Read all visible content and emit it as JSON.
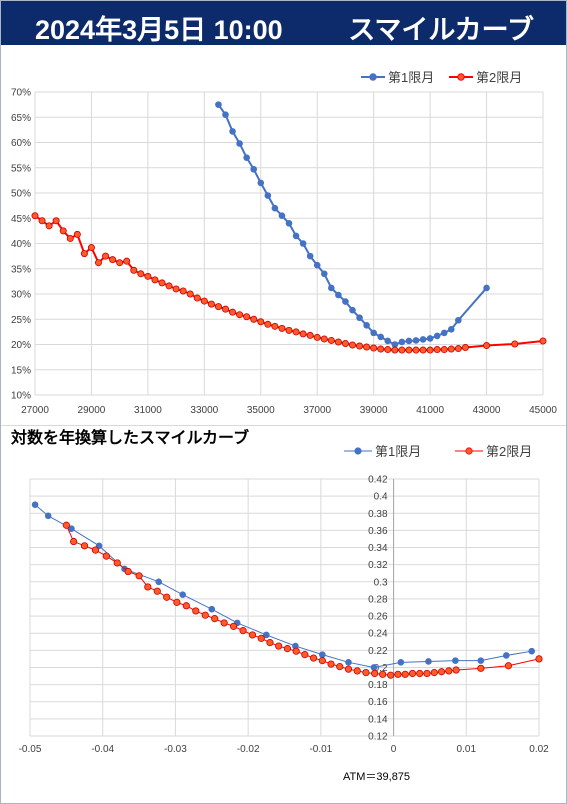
{
  "header": {
    "date": "2024年3月5日 10:00",
    "title": "スマイルカーブ"
  },
  "chart_data": [
    {
      "type": "line",
      "title": "",
      "xlabel": "",
      "ylabel": "",
      "xlim": [
        27000,
        45000
      ],
      "ylim": [
        0.1,
        0.7
      ],
      "x_ticks": [
        "27000",
        "29000",
        "31000",
        "33000",
        "35000",
        "37000",
        "39000",
        "41000",
        "43000",
        "45000"
      ],
      "y_ticks": [
        "10%",
        "15%",
        "20%",
        "25%",
        "30%",
        "35%",
        "40%",
        "45%",
        "50%",
        "55%",
        "60%",
        "65%",
        "70%"
      ],
      "legend_position": "top-right",
      "grid": true,
      "series": [
        {
          "name": "第1限月",
          "color": "#4472c4",
          "points": [
            [
              33500,
              0.675
            ],
            [
              33750,
              0.655
            ],
            [
              34000,
              0.622
            ],
            [
              34250,
              0.598
            ],
            [
              34500,
              0.57
            ],
            [
              34750,
              0.547
            ],
            [
              35000,
              0.52
            ],
            [
              35250,
              0.495
            ],
            [
              35500,
              0.47
            ],
            [
              35750,
              0.455
            ],
            [
              36000,
              0.44
            ],
            [
              36250,
              0.415
            ],
            [
              36500,
              0.4
            ],
            [
              36750,
              0.375
            ],
            [
              37000,
              0.357
            ],
            [
              37250,
              0.34
            ],
            [
              37500,
              0.312
            ],
            [
              37750,
              0.298
            ],
            [
              38000,
              0.285
            ],
            [
              38250,
              0.268
            ],
            [
              38500,
              0.253
            ],
            [
              38750,
              0.238
            ],
            [
              39000,
              0.223
            ],
            [
              39250,
              0.215
            ],
            [
              39500,
              0.207
            ],
            [
              39750,
              0.2
            ],
            [
              40000,
              0.205
            ],
            [
              40250,
              0.207
            ],
            [
              40500,
              0.208
            ],
            [
              40750,
              0.21
            ],
            [
              41000,
              0.212
            ],
            [
              41250,
              0.217
            ],
            [
              41500,
              0.223
            ],
            [
              41750,
              0.23
            ],
            [
              42000,
              0.248
            ],
            [
              43000,
              0.312
            ]
          ]
        },
        {
          "name": "第2限月",
          "color": "#ff0000",
          "points": [
            [
              27000,
              0.455
            ],
            [
              27250,
              0.445
            ],
            [
              27500,
              0.435
            ],
            [
              27750,
              0.445
            ],
            [
              28000,
              0.425
            ],
            [
              28250,
              0.41
            ],
            [
              28500,
              0.418
            ],
            [
              28750,
              0.38
            ],
            [
              29000,
              0.392
            ],
            [
              29250,
              0.362
            ],
            [
              29500,
              0.375
            ],
            [
              29750,
              0.368
            ],
            [
              30000,
              0.362
            ],
            [
              30250,
              0.365
            ],
            [
              30500,
              0.347
            ],
            [
              30750,
              0.34
            ],
            [
              31000,
              0.335
            ],
            [
              31250,
              0.328
            ],
            [
              31500,
              0.322
            ],
            [
              31750,
              0.316
            ],
            [
              32000,
              0.31
            ],
            [
              32250,
              0.306
            ],
            [
              32500,
              0.3
            ],
            [
              32750,
              0.292
            ],
            [
              33000,
              0.286
            ],
            [
              33250,
              0.28
            ],
            [
              33500,
              0.275
            ],
            [
              33750,
              0.27
            ],
            [
              34000,
              0.264
            ],
            [
              34250,
              0.259
            ],
            [
              34500,
              0.255
            ],
            [
              34750,
              0.25
            ],
            [
              35000,
              0.245
            ],
            [
              35250,
              0.24
            ],
            [
              35500,
              0.236
            ],
            [
              35750,
              0.232
            ],
            [
              36000,
              0.228
            ],
            [
              36250,
              0.225
            ],
            [
              36500,
              0.221
            ],
            [
              36750,
              0.218
            ],
            [
              37000,
              0.214
            ],
            [
              37250,
              0.211
            ],
            [
              37500,
              0.208
            ],
            [
              37750,
              0.205
            ],
            [
              38000,
              0.202
            ],
            [
              38250,
              0.199
            ],
            [
              38500,
              0.197
            ],
            [
              38750,
              0.195
            ],
            [
              39000,
              0.193
            ],
            [
              39250,
              0.191
            ],
            [
              39500,
              0.19
            ],
            [
              39750,
              0.189
            ],
            [
              40000,
              0.189
            ],
            [
              40250,
              0.189
            ],
            [
              40500,
              0.189
            ],
            [
              40750,
              0.189
            ],
            [
              41000,
              0.189
            ],
            [
              41250,
              0.19
            ],
            [
              41500,
              0.19
            ],
            [
              41750,
              0.191
            ],
            [
              42000,
              0.192
            ],
            [
              42250,
              0.194
            ],
            [
              43000,
              0.198
            ],
            [
              44000,
              0.201
            ],
            [
              45000,
              0.207
            ]
          ]
        }
      ]
    },
    {
      "type": "scatter",
      "title": "対数を年換算したスマイルカーブ",
      "xlabel": "",
      "ylabel": "",
      "xlim": [
        -0.05,
        0.02
      ],
      "ylim": [
        0.12,
        0.42
      ],
      "x_ticks": [
        "-0.05",
        "-0.04",
        "-0.03",
        "-0.02",
        "-0.01",
        "0",
        "0.01",
        "0.02"
      ],
      "y_ticks": [
        "0.12",
        "0.14",
        "0.16",
        "0.18",
        "0.2",
        "0.22",
        "0.24",
        "0.26",
        "0.28",
        "0.3",
        "0.32",
        "0.34",
        "0.36",
        "0.38",
        "0.4",
        "0.42"
      ],
      "legend_position": "top-right",
      "grid": true,
      "annotation": "ATM＝39,875",
      "series": [
        {
          "name": "第1限月",
          "color": "#4472c4",
          "points": [
            [
              -0.0493,
              0.39
            ],
            [
              -0.0475,
              0.377
            ],
            [
              -0.0443,
              0.362
            ],
            [
              -0.0405,
              0.342
            ],
            [
              -0.037,
              0.315
            ],
            [
              -0.0323,
              0.3
            ],
            [
              -0.029,
              0.285
            ],
            [
              -0.025,
              0.268
            ],
            [
              -0.0215,
              0.252
            ],
            [
              -0.0175,
              0.238
            ],
            [
              -0.0135,
              0.225
            ],
            [
              -0.0098,
              0.215
            ],
            [
              -0.0062,
              0.206
            ],
            [
              -0.0027,
              0.2
            ],
            [
              0.001,
              0.206
            ],
            [
              0.0048,
              0.207
            ],
            [
              0.0085,
              0.208
            ],
            [
              0.012,
              0.208
            ],
            [
              0.0155,
              0.214
            ],
            [
              0.019,
              0.219
            ]
          ]
        },
        {
          "name": "第2限月",
          "color": "#ff0000",
          "points": [
            [
              -0.045,
              0.366
            ],
            [
              -0.044,
              0.347
            ],
            [
              -0.0425,
              0.342
            ],
            [
              -0.041,
              0.337
            ],
            [
              -0.0395,
              0.33
            ],
            [
              -0.038,
              0.322
            ],
            [
              -0.0365,
              0.312
            ],
            [
              -0.035,
              0.307
            ],
            [
              -0.0338,
              0.294
            ],
            [
              -0.0325,
              0.289
            ],
            [
              -0.0312,
              0.282
            ],
            [
              -0.0298,
              0.276
            ],
            [
              -0.0285,
              0.272
            ],
            [
              -0.0272,
              0.266
            ],
            [
              -0.0259,
              0.261
            ],
            [
              -0.0246,
              0.257
            ],
            [
              -0.0233,
              0.252
            ],
            [
              -0.022,
              0.248
            ],
            [
              -0.0207,
              0.243
            ],
            [
              -0.0194,
              0.238
            ],
            [
              -0.0182,
              0.234
            ],
            [
              -0.017,
              0.229
            ],
            [
              -0.0158,
              0.225
            ],
            [
              -0.0146,
              0.222
            ],
            [
              -0.0134,
              0.219
            ],
            [
              -0.0122,
              0.215
            ],
            [
              -0.011,
              0.211
            ],
            [
              -0.0098,
              0.208
            ],
            [
              -0.0086,
              0.204
            ],
            [
              -0.0074,
              0.201
            ],
            [
              -0.0062,
              0.198
            ],
            [
              -0.005,
              0.196
            ],
            [
              -0.0038,
              0.194
            ],
            [
              -0.0026,
              0.193
            ],
            [
              -0.0015,
              0.192
            ],
            [
              -0.0004,
              0.191
            ],
            [
              0.0006,
              0.192
            ],
            [
              0.0016,
              0.192
            ],
            [
              0.0026,
              0.193
            ],
            [
              0.0036,
              0.193
            ],
            [
              0.0046,
              0.193
            ],
            [
              0.0056,
              0.194
            ],
            [
              0.0066,
              0.195
            ],
            [
              0.0076,
              0.196
            ],
            [
              0.0086,
              0.197
            ],
            [
              0.012,
              0.199
            ],
            [
              0.0158,
              0.202
            ],
            [
              0.02,
              0.21
            ]
          ]
        }
      ]
    }
  ]
}
